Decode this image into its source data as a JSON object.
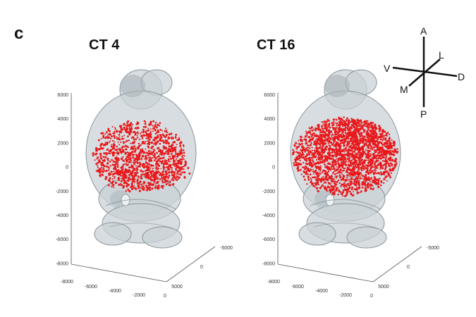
{
  "panel_label": "c",
  "panels": [
    {
      "title": "CT 4",
      "y_ticks": [
        "6000",
        "4000",
        "2000",
        "0",
        "-2000",
        "-4000",
        "-6000",
        "-8000"
      ],
      "x_ticks": [
        "-8000",
        "-6000",
        "-4000",
        "-2000",
        "0"
      ],
      "z_ticks": [
        "-5000",
        "0",
        "5000"
      ]
    },
    {
      "title": "CT 16",
      "y_ticks": [
        "6000",
        "4000",
        "2000",
        "0",
        "-2000",
        "-4000",
        "-6000",
        "-8000"
      ],
      "x_ticks": [
        "-8000",
        "-6000",
        "-4000",
        "-2000",
        "0"
      ],
      "z_ticks": [
        "-5000",
        "0",
        "5000"
      ]
    }
  ],
  "orientation": {
    "labels": [
      "A",
      "L",
      "V",
      "D",
      "M",
      "P"
    ]
  },
  "colors": {
    "brain": "#c9d2d6",
    "brain_edge": "#8a9499",
    "cells": "#e8191c",
    "axis": "#555555"
  }
}
